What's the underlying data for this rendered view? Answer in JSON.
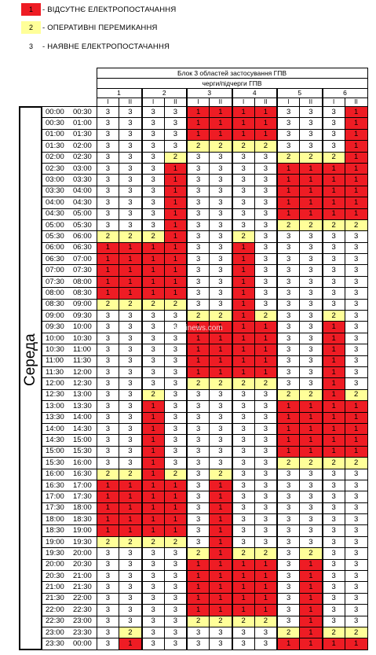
{
  "legend": [
    {
      "code": "1",
      "text": "- ВІДСУТНЄ ЕЛЕКТРОПОСТАЧАННЯ",
      "color": "#ee1c24"
    },
    {
      "code": "2",
      "text": "- ОПЕРАТИВНІ ПЕРЕМИКАННЯ",
      "color": "#ffff99"
    },
    {
      "code": "3",
      "text": "- НАЯВНЕ ЕЛЕКТРОПОСТАЧАННЯ",
      "color": "#ffffff"
    }
  ],
  "table": {
    "title": "Блок 3 областей застосування ГПВ",
    "subtitle": "черги/підчерги ГПВ",
    "groups": [
      "1",
      "2",
      "3",
      "4",
      "5",
      "6"
    ],
    "subgroups": [
      "I",
      "II",
      "I",
      "II",
      "I",
      "II",
      "I",
      "II",
      "I",
      "II",
      "I",
      "II"
    ],
    "day": "Середа",
    "rows": [
      {
        "from": "00:00",
        "to": "00:30",
        "values": [
          3,
          3,
          3,
          3,
          1,
          1,
          1,
          1,
          3,
          3,
          3,
          1
        ]
      },
      {
        "from": "00:30",
        "to": "01:00",
        "values": [
          3,
          3,
          3,
          3,
          1,
          1,
          1,
          1,
          3,
          3,
          3,
          1
        ]
      },
      {
        "from": "01:00",
        "to": "01:30",
        "values": [
          3,
          3,
          3,
          3,
          1,
          1,
          1,
          1,
          3,
          3,
          3,
          1
        ]
      },
      {
        "from": "01:30",
        "to": "02:00",
        "values": [
          3,
          3,
          3,
          3,
          2,
          2,
          2,
          2,
          3,
          3,
          3,
          1
        ]
      },
      {
        "from": "02:00",
        "to": "02:30",
        "values": [
          3,
          3,
          3,
          2,
          3,
          3,
          3,
          3,
          2,
          2,
          2,
          1
        ]
      },
      {
        "from": "02:30",
        "to": "03:00",
        "values": [
          3,
          3,
          3,
          1,
          3,
          3,
          3,
          3,
          1,
          1,
          1,
          1
        ]
      },
      {
        "from": "03:00",
        "to": "03:30",
        "values": [
          3,
          3,
          3,
          1,
          3,
          3,
          3,
          3,
          1,
          1,
          1,
          1
        ]
      },
      {
        "from": "03:30",
        "to": "04:00",
        "values": [
          3,
          3,
          3,
          1,
          3,
          3,
          3,
          3,
          1,
          1,
          1,
          1
        ]
      },
      {
        "from": "04:00",
        "to": "04:30",
        "values": [
          3,
          3,
          3,
          1,
          3,
          3,
          3,
          3,
          1,
          1,
          1,
          1
        ]
      },
      {
        "from": "04:30",
        "to": "05:00",
        "values": [
          3,
          3,
          3,
          1,
          3,
          3,
          3,
          3,
          1,
          1,
          1,
          1
        ]
      },
      {
        "from": "05:00",
        "to": "05:30",
        "values": [
          3,
          3,
          3,
          1,
          3,
          3,
          3,
          3,
          2,
          2,
          2,
          2
        ]
      },
      {
        "from": "05:30",
        "to": "06:00",
        "values": [
          2,
          2,
          2,
          1,
          3,
          3,
          2,
          3,
          3,
          3,
          3,
          3
        ]
      },
      {
        "from": "06:00",
        "to": "06:30",
        "values": [
          1,
          1,
          1,
          1,
          3,
          3,
          1,
          3,
          3,
          3,
          3,
          3
        ]
      },
      {
        "from": "06:30",
        "to": "07:00",
        "values": [
          1,
          1,
          1,
          1,
          3,
          3,
          1,
          3,
          3,
          3,
          3,
          3
        ]
      },
      {
        "from": "07:00",
        "to": "07:30",
        "values": [
          1,
          1,
          1,
          1,
          3,
          3,
          1,
          3,
          3,
          3,
          3,
          3
        ]
      },
      {
        "from": "07:30",
        "to": "08:00",
        "values": [
          1,
          1,
          1,
          1,
          3,
          3,
          1,
          3,
          3,
          3,
          3,
          3
        ]
      },
      {
        "from": "08:00",
        "to": "08:30",
        "values": [
          1,
          1,
          1,
          1,
          3,
          3,
          1,
          3,
          3,
          3,
          3,
          3
        ]
      },
      {
        "from": "08:30",
        "to": "09:00",
        "values": [
          2,
          2,
          2,
          2,
          3,
          3,
          1,
          3,
          3,
          3,
          3,
          3
        ]
      },
      {
        "from": "09:00",
        "to": "09:30",
        "values": [
          3,
          3,
          3,
          3,
          2,
          2,
          1,
          2,
          3,
          3,
          2,
          3
        ]
      },
      {
        "from": "09:30",
        "to": "10:00",
        "values": [
          3,
          3,
          3,
          3,
          1,
          1,
          1,
          1,
          3,
          3,
          1,
          3
        ]
      },
      {
        "from": "10:00",
        "to": "10:30",
        "values": [
          3,
          3,
          3,
          3,
          1,
          1,
          1,
          1,
          3,
          3,
          1,
          3
        ]
      },
      {
        "from": "10:30",
        "to": "11:00",
        "values": [
          3,
          3,
          3,
          3,
          1,
          1,
          1,
          1,
          3,
          3,
          1,
          3
        ]
      },
      {
        "from": "11:00",
        "to": "11:30",
        "values": [
          3,
          3,
          3,
          3,
          1,
          1,
          1,
          1,
          3,
          3,
          1,
          3
        ]
      },
      {
        "from": "11:30",
        "to": "12:00",
        "values": [
          3,
          3,
          3,
          3,
          1,
          1,
          1,
          1,
          3,
          3,
          1,
          3
        ]
      },
      {
        "from": "12:00",
        "to": "12:30",
        "values": [
          3,
          3,
          3,
          3,
          2,
          2,
          2,
          2,
          3,
          3,
          1,
          3
        ]
      },
      {
        "from": "12:30",
        "to": "13:00",
        "values": [
          3,
          3,
          2,
          3,
          3,
          3,
          3,
          3,
          2,
          2,
          1,
          2
        ]
      },
      {
        "from": "13:00",
        "to": "13:30",
        "values": [
          3,
          3,
          1,
          3,
          3,
          3,
          3,
          3,
          1,
          1,
          1,
          1
        ]
      },
      {
        "from": "13:30",
        "to": "14:00",
        "values": [
          3,
          3,
          1,
          3,
          3,
          3,
          3,
          3,
          1,
          1,
          1,
          1
        ]
      },
      {
        "from": "14:00",
        "to": "14:30",
        "values": [
          3,
          3,
          1,
          3,
          3,
          3,
          3,
          3,
          1,
          1,
          1,
          1
        ]
      },
      {
        "from": "14:30",
        "to": "15:00",
        "values": [
          3,
          3,
          1,
          3,
          3,
          3,
          3,
          3,
          1,
          1,
          1,
          1
        ]
      },
      {
        "from": "15:00",
        "to": "15:30",
        "values": [
          3,
          3,
          1,
          3,
          3,
          3,
          3,
          3,
          1,
          1,
          1,
          1
        ]
      },
      {
        "from": "15:30",
        "to": "16:00",
        "values": [
          3,
          3,
          1,
          3,
          3,
          3,
          3,
          3,
          2,
          2,
          2,
          2
        ]
      },
      {
        "from": "16:00",
        "to": "16:30",
        "values": [
          2,
          2,
          1,
          2,
          3,
          2,
          3,
          3,
          3,
          3,
          3,
          3
        ]
      },
      {
        "from": "16:30",
        "to": "17:00",
        "values": [
          1,
          1,
          1,
          1,
          3,
          1,
          3,
          3,
          3,
          3,
          3,
          3
        ]
      },
      {
        "from": "17:00",
        "to": "17:30",
        "values": [
          1,
          1,
          1,
          1,
          3,
          1,
          3,
          3,
          3,
          3,
          3,
          3
        ]
      },
      {
        "from": "17:30",
        "to": "18:00",
        "values": [
          1,
          1,
          1,
          1,
          3,
          1,
          3,
          3,
          3,
          3,
          3,
          3
        ]
      },
      {
        "from": "18:00",
        "to": "18:30",
        "values": [
          1,
          1,
          1,
          1,
          3,
          1,
          3,
          3,
          3,
          3,
          3,
          3
        ]
      },
      {
        "from": "18:30",
        "to": "19:00",
        "values": [
          1,
          1,
          1,
          1,
          3,
          1,
          3,
          3,
          3,
          3,
          3,
          3
        ]
      },
      {
        "from": "19:00",
        "to": "19:30",
        "values": [
          2,
          2,
          2,
          2,
          3,
          1,
          3,
          3,
          3,
          3,
          3,
          3
        ]
      },
      {
        "from": "19:30",
        "to": "20:00",
        "values": [
          3,
          3,
          3,
          3,
          2,
          1,
          2,
          2,
          3,
          2,
          3,
          3
        ]
      },
      {
        "from": "20:00",
        "to": "20:30",
        "values": [
          3,
          3,
          3,
          3,
          1,
          1,
          1,
          1,
          3,
          1,
          3,
          3
        ]
      },
      {
        "from": "20:30",
        "to": "21:00",
        "values": [
          3,
          3,
          3,
          3,
          1,
          1,
          1,
          1,
          3,
          1,
          3,
          3
        ]
      },
      {
        "from": "21:00",
        "to": "21:30",
        "values": [
          3,
          3,
          3,
          3,
          1,
          1,
          1,
          1,
          3,
          1,
          3,
          3
        ]
      },
      {
        "from": "21:30",
        "to": "22:00",
        "values": [
          3,
          3,
          3,
          3,
          1,
          1,
          1,
          1,
          3,
          1,
          3,
          3
        ]
      },
      {
        "from": "22:00",
        "to": "22:30",
        "values": [
          3,
          3,
          3,
          3,
          1,
          1,
          1,
          1,
          3,
          1,
          3,
          3
        ]
      },
      {
        "from": "22:30",
        "to": "23:00",
        "values": [
          3,
          3,
          3,
          3,
          2,
          2,
          2,
          2,
          3,
          1,
          3,
          3
        ]
      },
      {
        "from": "23:00",
        "to": "23:30",
        "values": [
          3,
          2,
          3,
          3,
          3,
          3,
          3,
          3,
          2,
          1,
          2,
          2
        ]
      },
      {
        "from": "23:30",
        "to": "00:00",
        "values": [
          3,
          1,
          3,
          3,
          3,
          3,
          3,
          3,
          1,
          1,
          1,
          1
        ]
      }
    ]
  },
  "watermark": "ukrainews.com"
}
